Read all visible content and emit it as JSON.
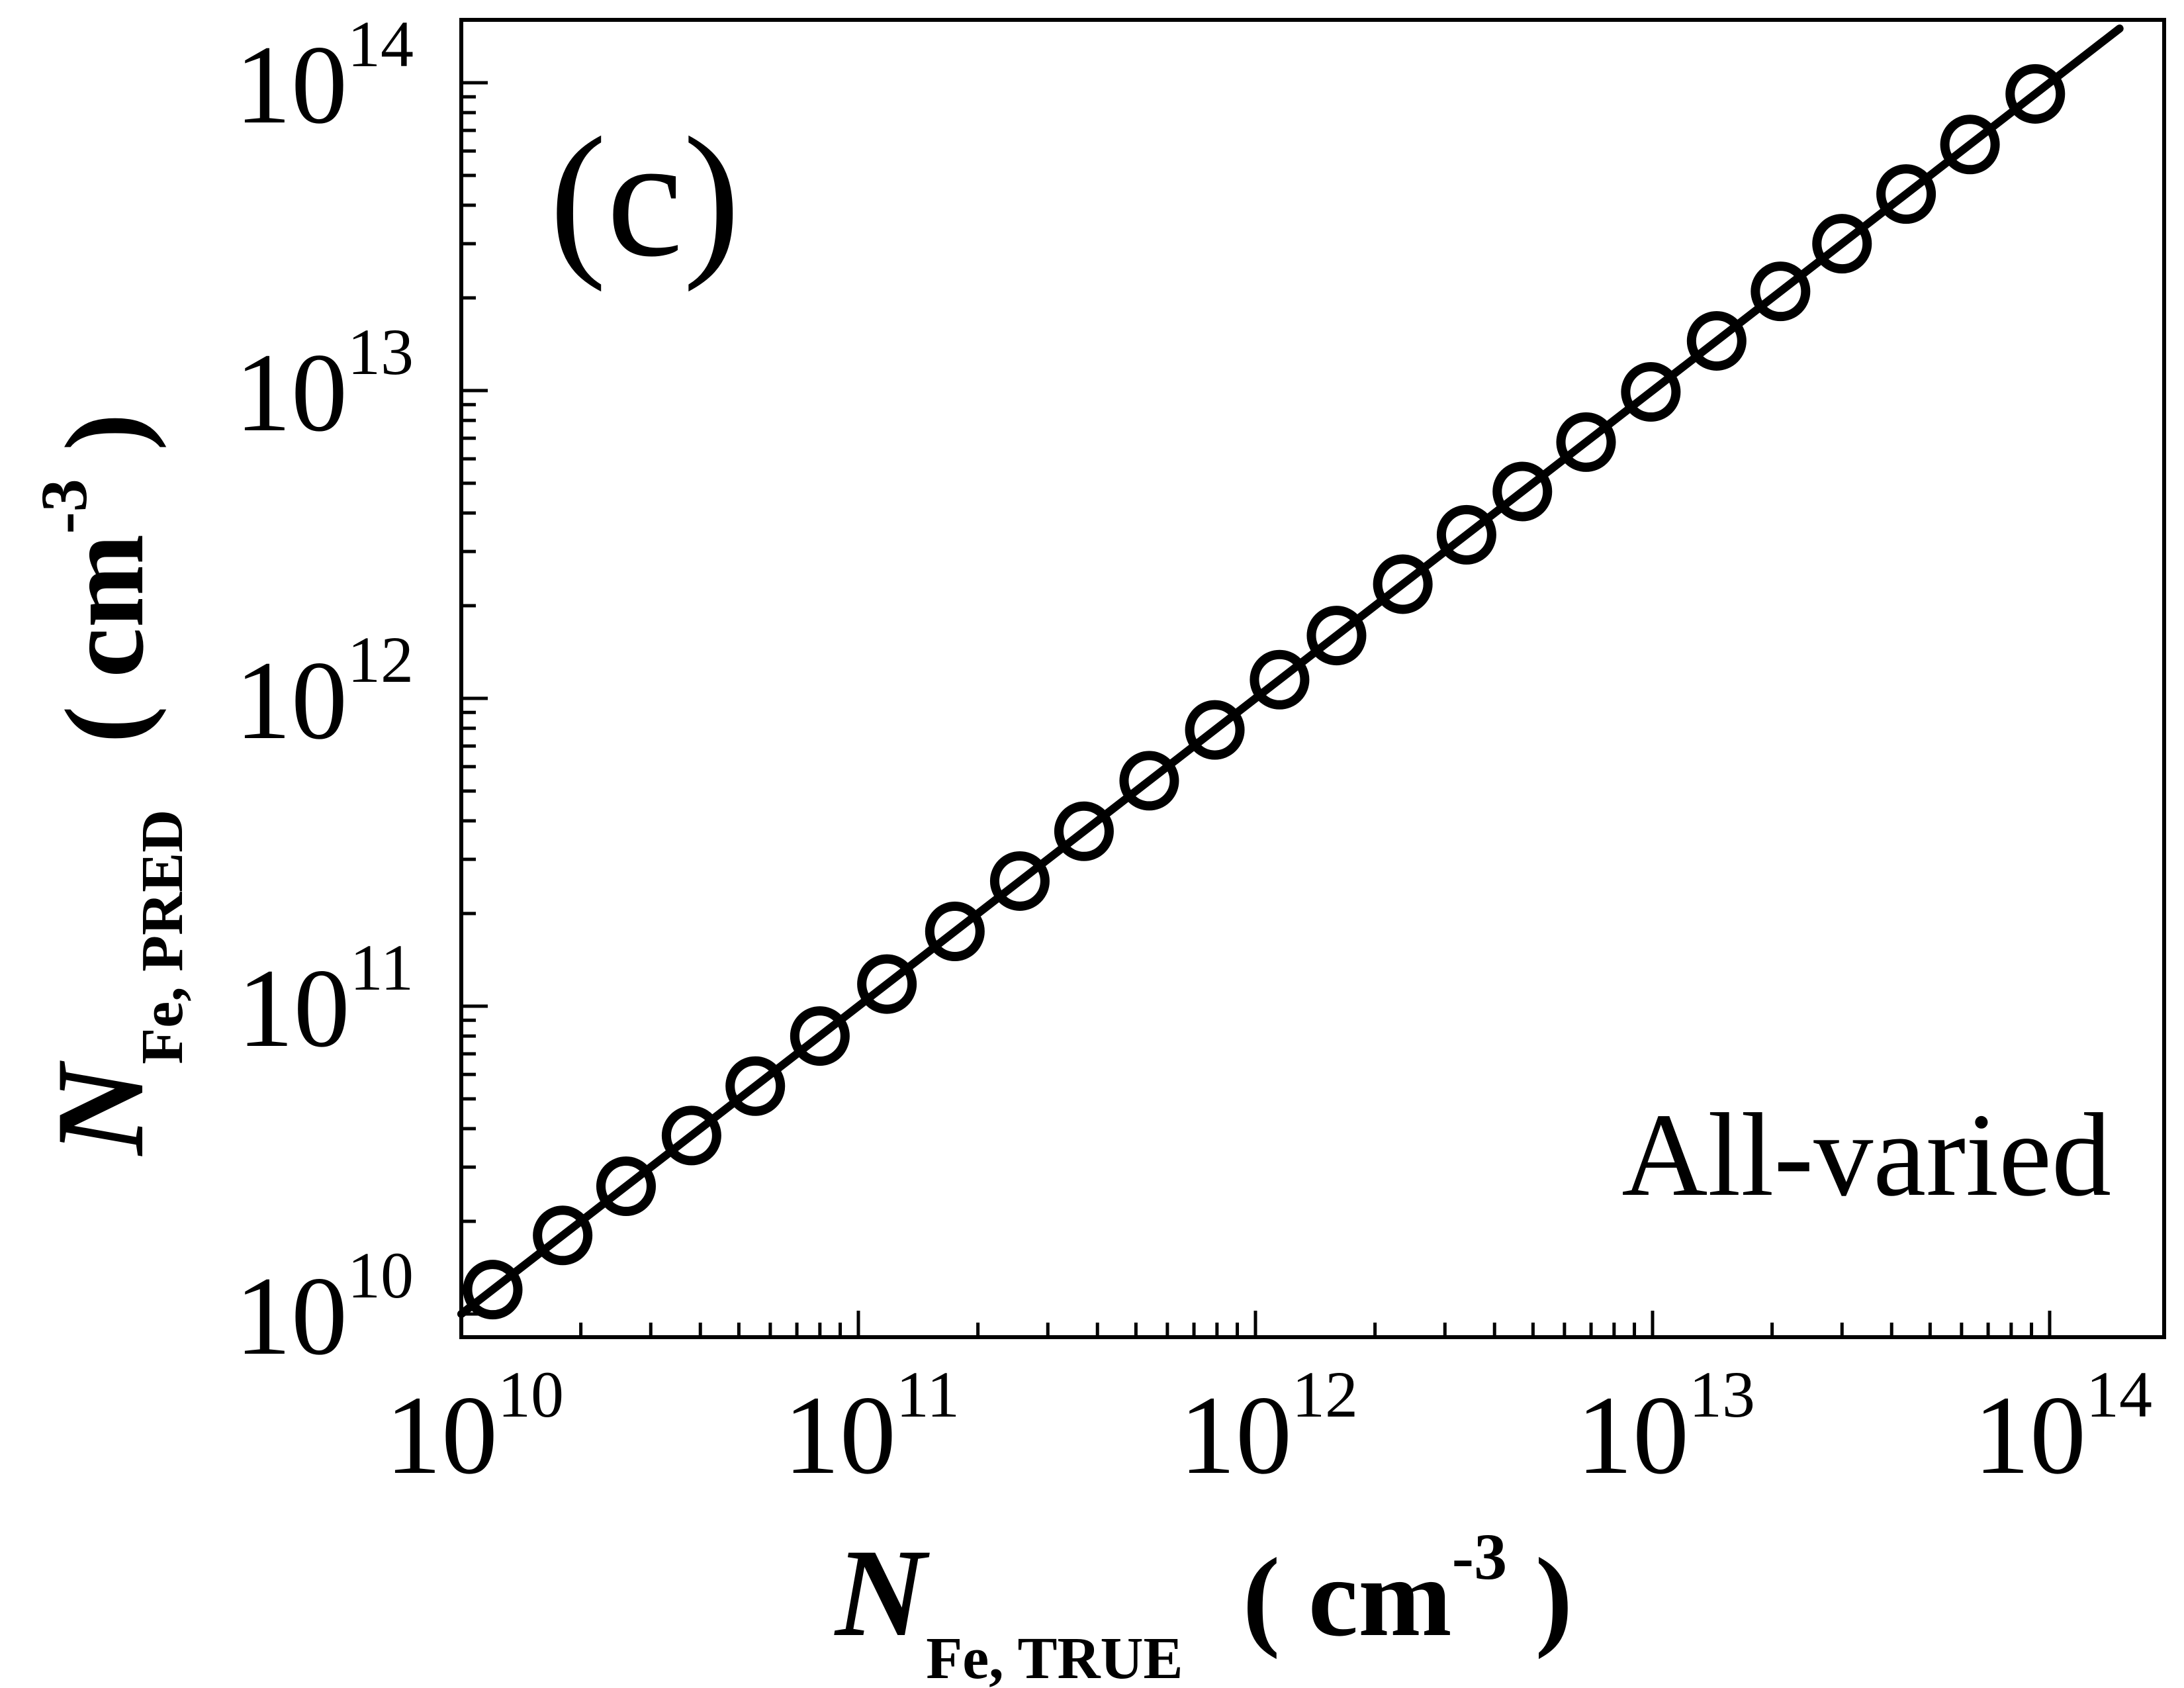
{
  "chart_data": {
    "type": "scatter",
    "panel_label": "(c)",
    "annotation": "All-varied",
    "x_scale": "log",
    "y_scale": "log",
    "xlim": [
      10000000000.0,
      100000000000000.0
    ],
    "ylim": [
      10000000000.0,
      100000000000000.0
    ],
    "x_tick_labels": [
      {
        "base": "10",
        "exp": "10"
      },
      {
        "base": "10",
        "exp": "11"
      },
      {
        "base": "10",
        "exp": "12"
      },
      {
        "base": "10",
        "exp": "13"
      },
      {
        "base": "10",
        "exp": "14"
      }
    ],
    "y_tick_labels": [
      {
        "base": "10",
        "exp": "10"
      },
      {
        "base": "10",
        "exp": "11"
      },
      {
        "base": "10",
        "exp": "12"
      },
      {
        "base": "10",
        "exp": "13"
      },
      {
        "base": "10",
        "exp": "14"
      }
    ],
    "xlabel": {
      "main": "N",
      "sub": "Fe, TRUE",
      "unit_pre": "( cm",
      "unit_exp": "-3",
      "unit_post": " )"
    },
    "ylabel": {
      "main": "N",
      "sub": "Fe, PRED",
      "unit_pre": "( cm",
      "unit_exp": "-3",
      "unit_post": " )"
    },
    "grid": false,
    "reference_line": {
      "style": "solid",
      "x": [
        10000000000.0,
        150000000000000.0
      ],
      "y": [
        10000000000.0,
        150000000000000.0
      ]
    },
    "series": [
      {
        "marker": "open-circle",
        "x": [
          12000000000.0,
          18000000000.0,
          26000000000.0,
          38000000000.0,
          55000000000.0,
          80000000000.0,
          118000000000.0,
          175000000000.0,
          255000000000.0,
          370000000000.0,
          540000000000.0,
          790000000000.0,
          1150000000000.0,
          1600000000000.0,
          2350000000000.0,
          3400000000000.0,
          4700000000000.0,
          6800000000000.0,
          9900000000000.0,
          14500000000000.0,
          21000000000000.0,
          30000000000000.0,
          43500000000000.0,
          63000000000000.0,
          92000000000000.0
        ],
        "y": [
          12000000000.0,
          18000000000.0,
          26000000000.0,
          38000000000.0,
          55000000000.0,
          80000000000.0,
          118000000000.0,
          175000000000.0,
          255000000000.0,
          370000000000.0,
          540000000000.0,
          790000000000.0,
          1150000000000.0,
          1600000000000.0,
          2350000000000.0,
          3400000000000.0,
          4700000000000.0,
          6800000000000.0,
          9900000000000.0,
          14500000000000.0,
          21000000000000.0,
          30000000000000.0,
          43500000000000.0,
          63000000000000.0,
          92000000000000.0
        ]
      }
    ]
  }
}
